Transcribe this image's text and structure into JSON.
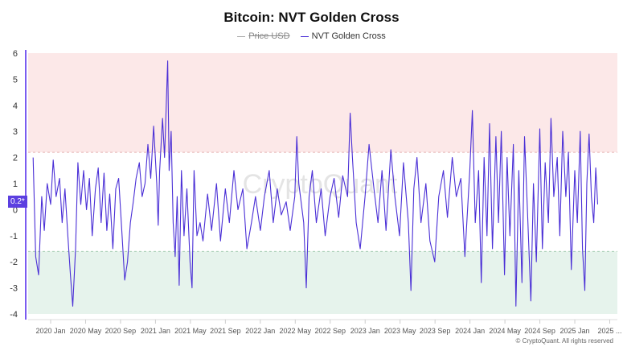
{
  "chart_data": {
    "type": "line",
    "title": "Bitcoin: NVT Golden Cross",
    "legend": [
      {
        "name": "Price USD",
        "color": "#aaaaaa",
        "hidden": true
      },
      {
        "name": "NVT Golden Cross",
        "color": "#4a2fd6",
        "hidden": false
      }
    ],
    "legend_position": "top",
    "ylim": [
      -4,
      6
    ],
    "yticks": [
      "6",
      "5",
      "4",
      "3",
      "2",
      "1",
      "0",
      "-1",
      "-2",
      "-3",
      "-4"
    ],
    "xticks": [
      "2020 Jan",
      "2020 May",
      "2020 Sep",
      "2021 Jan",
      "2021 May",
      "2021 Sep",
      "2022 Jan",
      "2022 May",
      "2022 Sep",
      "2023 Jan",
      "2023 May",
      "2023 Sep",
      "2024 Jan",
      "2024 May",
      "2024 Sep",
      "2025 Jan",
      "2025 ..."
    ],
    "bands": [
      {
        "from": 2.2,
        "to": 6,
        "color": "#fce8e8"
      },
      {
        "from": -4,
        "to": -1.6,
        "color": "#e6f3ec"
      }
    ],
    "current_value_label": "0.2*",
    "watermark": "CryptoQuant",
    "copyright": "© CryptoQuant. All rights reserved",
    "series": [
      {
        "name": "NVT Golden Cross",
        "points": [
          [
            "2019-11-01",
            2.0
          ],
          [
            "2019-11-10",
            -1.8
          ],
          [
            "2019-11-20",
            -2.5
          ],
          [
            "2019-12-01",
            0.5
          ],
          [
            "2019-12-10",
            -0.8
          ],
          [
            "2019-12-20",
            1.0
          ],
          [
            "2020-01-01",
            0.2
          ],
          [
            "2020-01-10",
            1.9
          ],
          [
            "2020-01-20",
            0.5
          ],
          [
            "2020-02-01",
            1.2
          ],
          [
            "2020-02-10",
            -0.5
          ],
          [
            "2020-02-20",
            0.8
          ],
          [
            "2020-03-01",
            -1.0
          ],
          [
            "2020-03-10",
            -2.5
          ],
          [
            "2020-03-18",
            -3.7
          ],
          [
            "2020-03-28",
            -1.5
          ],
          [
            "2020-04-05",
            1.8
          ],
          [
            "2020-04-15",
            0.2
          ],
          [
            "2020-04-25",
            1.5
          ],
          [
            "2020-05-05",
            0.0
          ],
          [
            "2020-05-15",
            1.2
          ],
          [
            "2020-05-25",
            -1.0
          ],
          [
            "2020-06-05",
            0.8
          ],
          [
            "2020-06-15",
            1.6
          ],
          [
            "2020-06-25",
            -0.5
          ],
          [
            "2020-07-05",
            1.4
          ],
          [
            "2020-07-15",
            -0.8
          ],
          [
            "2020-07-25",
            0.6
          ],
          [
            "2020-08-05",
            -1.5
          ],
          [
            "2020-08-15",
            0.8
          ],
          [
            "2020-08-25",
            1.2
          ],
          [
            "2020-09-05",
            -0.8
          ],
          [
            "2020-09-15",
            -2.7
          ],
          [
            "2020-09-25",
            -2.0
          ],
          [
            "2020-10-05",
            -0.5
          ],
          [
            "2020-10-15",
            0.3
          ],
          [
            "2020-10-25",
            1.2
          ],
          [
            "2020-11-05",
            1.8
          ],
          [
            "2020-11-15",
            0.5
          ],
          [
            "2020-11-25",
            1.0
          ],
          [
            "2020-12-05",
            2.5
          ],
          [
            "2020-12-15",
            1.2
          ],
          [
            "2020-12-25",
            3.2
          ],
          [
            "2021-01-05",
            1.0
          ],
          [
            "2021-01-10",
            -0.6
          ],
          [
            "2021-01-15",
            1.5
          ],
          [
            "2021-01-25",
            3.5
          ],
          [
            "2021-02-01",
            2.0
          ],
          [
            "2021-02-07",
            4.0
          ],
          [
            "2021-02-12",
            5.7
          ],
          [
            "2021-02-17",
            1.5
          ],
          [
            "2021-02-24",
            3.0
          ],
          [
            "2021-03-03",
            -0.5
          ],
          [
            "2021-03-10",
            -1.8
          ],
          [
            "2021-03-17",
            0.5
          ],
          [
            "2021-03-24",
            -2.9
          ],
          [
            "2021-04-01",
            1.5
          ],
          [
            "2021-04-10",
            -1.0
          ],
          [
            "2021-04-20",
            0.8
          ],
          [
            "2021-05-01",
            -2.0
          ],
          [
            "2021-05-08",
            -3.0
          ],
          [
            "2021-05-15",
            1.5
          ],
          [
            "2021-05-25",
            -1.0
          ],
          [
            "2021-06-05",
            -0.5
          ],
          [
            "2021-06-15",
            -1.2
          ],
          [
            "2021-07-01",
            0.6
          ],
          [
            "2021-07-15",
            -0.8
          ],
          [
            "2021-08-01",
            1.0
          ],
          [
            "2021-08-15",
            -1.2
          ],
          [
            "2021-09-01",
            0.8
          ],
          [
            "2021-09-15",
            -0.5
          ],
          [
            "2021-10-01",
            1.5
          ],
          [
            "2021-10-15",
            0.0
          ],
          [
            "2021-11-01",
            0.8
          ],
          [
            "2021-11-15",
            -1.5
          ],
          [
            "2021-12-01",
            -0.5
          ],
          [
            "2021-12-15",
            0.5
          ],
          [
            "2022-01-01",
            -0.8
          ],
          [
            "2022-01-15",
            0.5
          ],
          [
            "2022-02-01",
            1.5
          ],
          [
            "2022-02-15",
            -0.5
          ],
          [
            "2022-03-01",
            0.8
          ],
          [
            "2022-03-15",
            -0.2
          ],
          [
            "2022-04-01",
            0.3
          ],
          [
            "2022-04-15",
            -0.8
          ],
          [
            "2022-05-01",
            0.5
          ],
          [
            "2022-05-08",
            2.8
          ],
          [
            "2022-05-15",
            1.0
          ],
          [
            "2022-06-01",
            -0.5
          ],
          [
            "2022-06-10",
            -3.0
          ],
          [
            "2022-06-20",
            0.5
          ],
          [
            "2022-07-01",
            1.5
          ],
          [
            "2022-07-15",
            -0.5
          ],
          [
            "2022-08-01",
            0.8
          ],
          [
            "2022-08-15",
            -1.0
          ],
          [
            "2022-09-01",
            0.5
          ],
          [
            "2022-09-15",
            1.2
          ],
          [
            "2022-10-01",
            -0.3
          ],
          [
            "2022-10-15",
            1.3
          ],
          [
            "2022-11-01",
            0.5
          ],
          [
            "2022-11-10",
            3.7
          ],
          [
            "2022-11-18",
            2.0
          ],
          [
            "2022-12-01",
            -0.5
          ],
          [
            "2022-12-15",
            -1.5
          ],
          [
            "2023-01-01",
            0.5
          ],
          [
            "2023-01-15",
            2.5
          ],
          [
            "2023-02-01",
            0.8
          ],
          [
            "2023-02-15",
            -0.5
          ],
          [
            "2023-03-01",
            1.5
          ],
          [
            "2023-03-15",
            -0.8
          ],
          [
            "2023-04-01",
            2.3
          ],
          [
            "2023-04-15",
            0.5
          ],
          [
            "2023-05-01",
            -1.0
          ],
          [
            "2023-05-15",
            1.8
          ],
          [
            "2023-06-01",
            -0.5
          ],
          [
            "2023-06-10",
            -3.1
          ],
          [
            "2023-06-20",
            0.8
          ],
          [
            "2023-07-01",
            2.0
          ],
          [
            "2023-07-15",
            -0.5
          ],
          [
            "2023-08-01",
            1.0
          ],
          [
            "2023-08-15",
            -1.2
          ],
          [
            "2023-09-01",
            -2.0
          ],
          [
            "2023-09-15",
            0.5
          ],
          [
            "2023-10-01",
            1.5
          ],
          [
            "2023-10-15",
            -0.3
          ],
          [
            "2023-11-01",
            2.0
          ],
          [
            "2023-11-15",
            0.5
          ],
          [
            "2023-12-01",
            1.2
          ],
          [
            "2023-12-15",
            -1.8
          ],
          [
            "2024-01-01",
            1.5
          ],
          [
            "2024-01-10",
            3.8
          ],
          [
            "2024-01-20",
            -0.5
          ],
          [
            "2024-02-01",
            1.5
          ],
          [
            "2024-02-10",
            -2.8
          ],
          [
            "2024-02-20",
            2.0
          ],
          [
            "2024-03-01",
            -1.0
          ],
          [
            "2024-03-10",
            3.3
          ],
          [
            "2024-03-20",
            -1.5
          ],
          [
            "2024-04-01",
            2.8
          ],
          [
            "2024-04-10",
            -0.5
          ],
          [
            "2024-04-20",
            3.0
          ],
          [
            "2024-05-01",
            -2.5
          ],
          [
            "2024-05-10",
            2.0
          ],
          [
            "2024-05-20",
            -1.0
          ],
          [
            "2024-06-01",
            2.5
          ],
          [
            "2024-06-10",
            -3.7
          ],
          [
            "2024-06-20",
            1.5
          ],
          [
            "2024-07-01",
            -2.8
          ],
          [
            "2024-07-10",
            2.8
          ],
          [
            "2024-07-20",
            0.0
          ],
          [
            "2024-08-01",
            -3.5
          ],
          [
            "2024-08-10",
            1.0
          ],
          [
            "2024-08-20",
            -2.0
          ],
          [
            "2024-09-01",
            3.1
          ],
          [
            "2024-09-10",
            -1.5
          ],
          [
            "2024-09-20",
            1.8
          ],
          [
            "2024-10-01",
            -0.5
          ],
          [
            "2024-10-10",
            3.5
          ],
          [
            "2024-10-20",
            0.5
          ],
          [
            "2024-11-01",
            2.0
          ],
          [
            "2024-11-10",
            -1.0
          ],
          [
            "2024-11-20",
            3.0
          ],
          [
            "2024-12-01",
            0.5
          ],
          [
            "2024-12-10",
            2.2
          ],
          [
            "2024-12-20",
            -2.3
          ],
          [
            "2025-01-01",
            1.5
          ],
          [
            "2025-01-10",
            -0.5
          ],
          [
            "2025-01-20",
            3.0
          ],
          [
            "2025-01-28",
            -1.5
          ],
          [
            "2025-02-05",
            -3.1
          ],
          [
            "2025-02-12",
            1.0
          ],
          [
            "2025-02-20",
            2.9
          ],
          [
            "2025-02-28",
            0.5
          ],
          [
            "2025-03-08",
            -0.5
          ],
          [
            "2025-03-15",
            1.6
          ],
          [
            "2025-03-22",
            0.2
          ]
        ]
      }
    ]
  }
}
